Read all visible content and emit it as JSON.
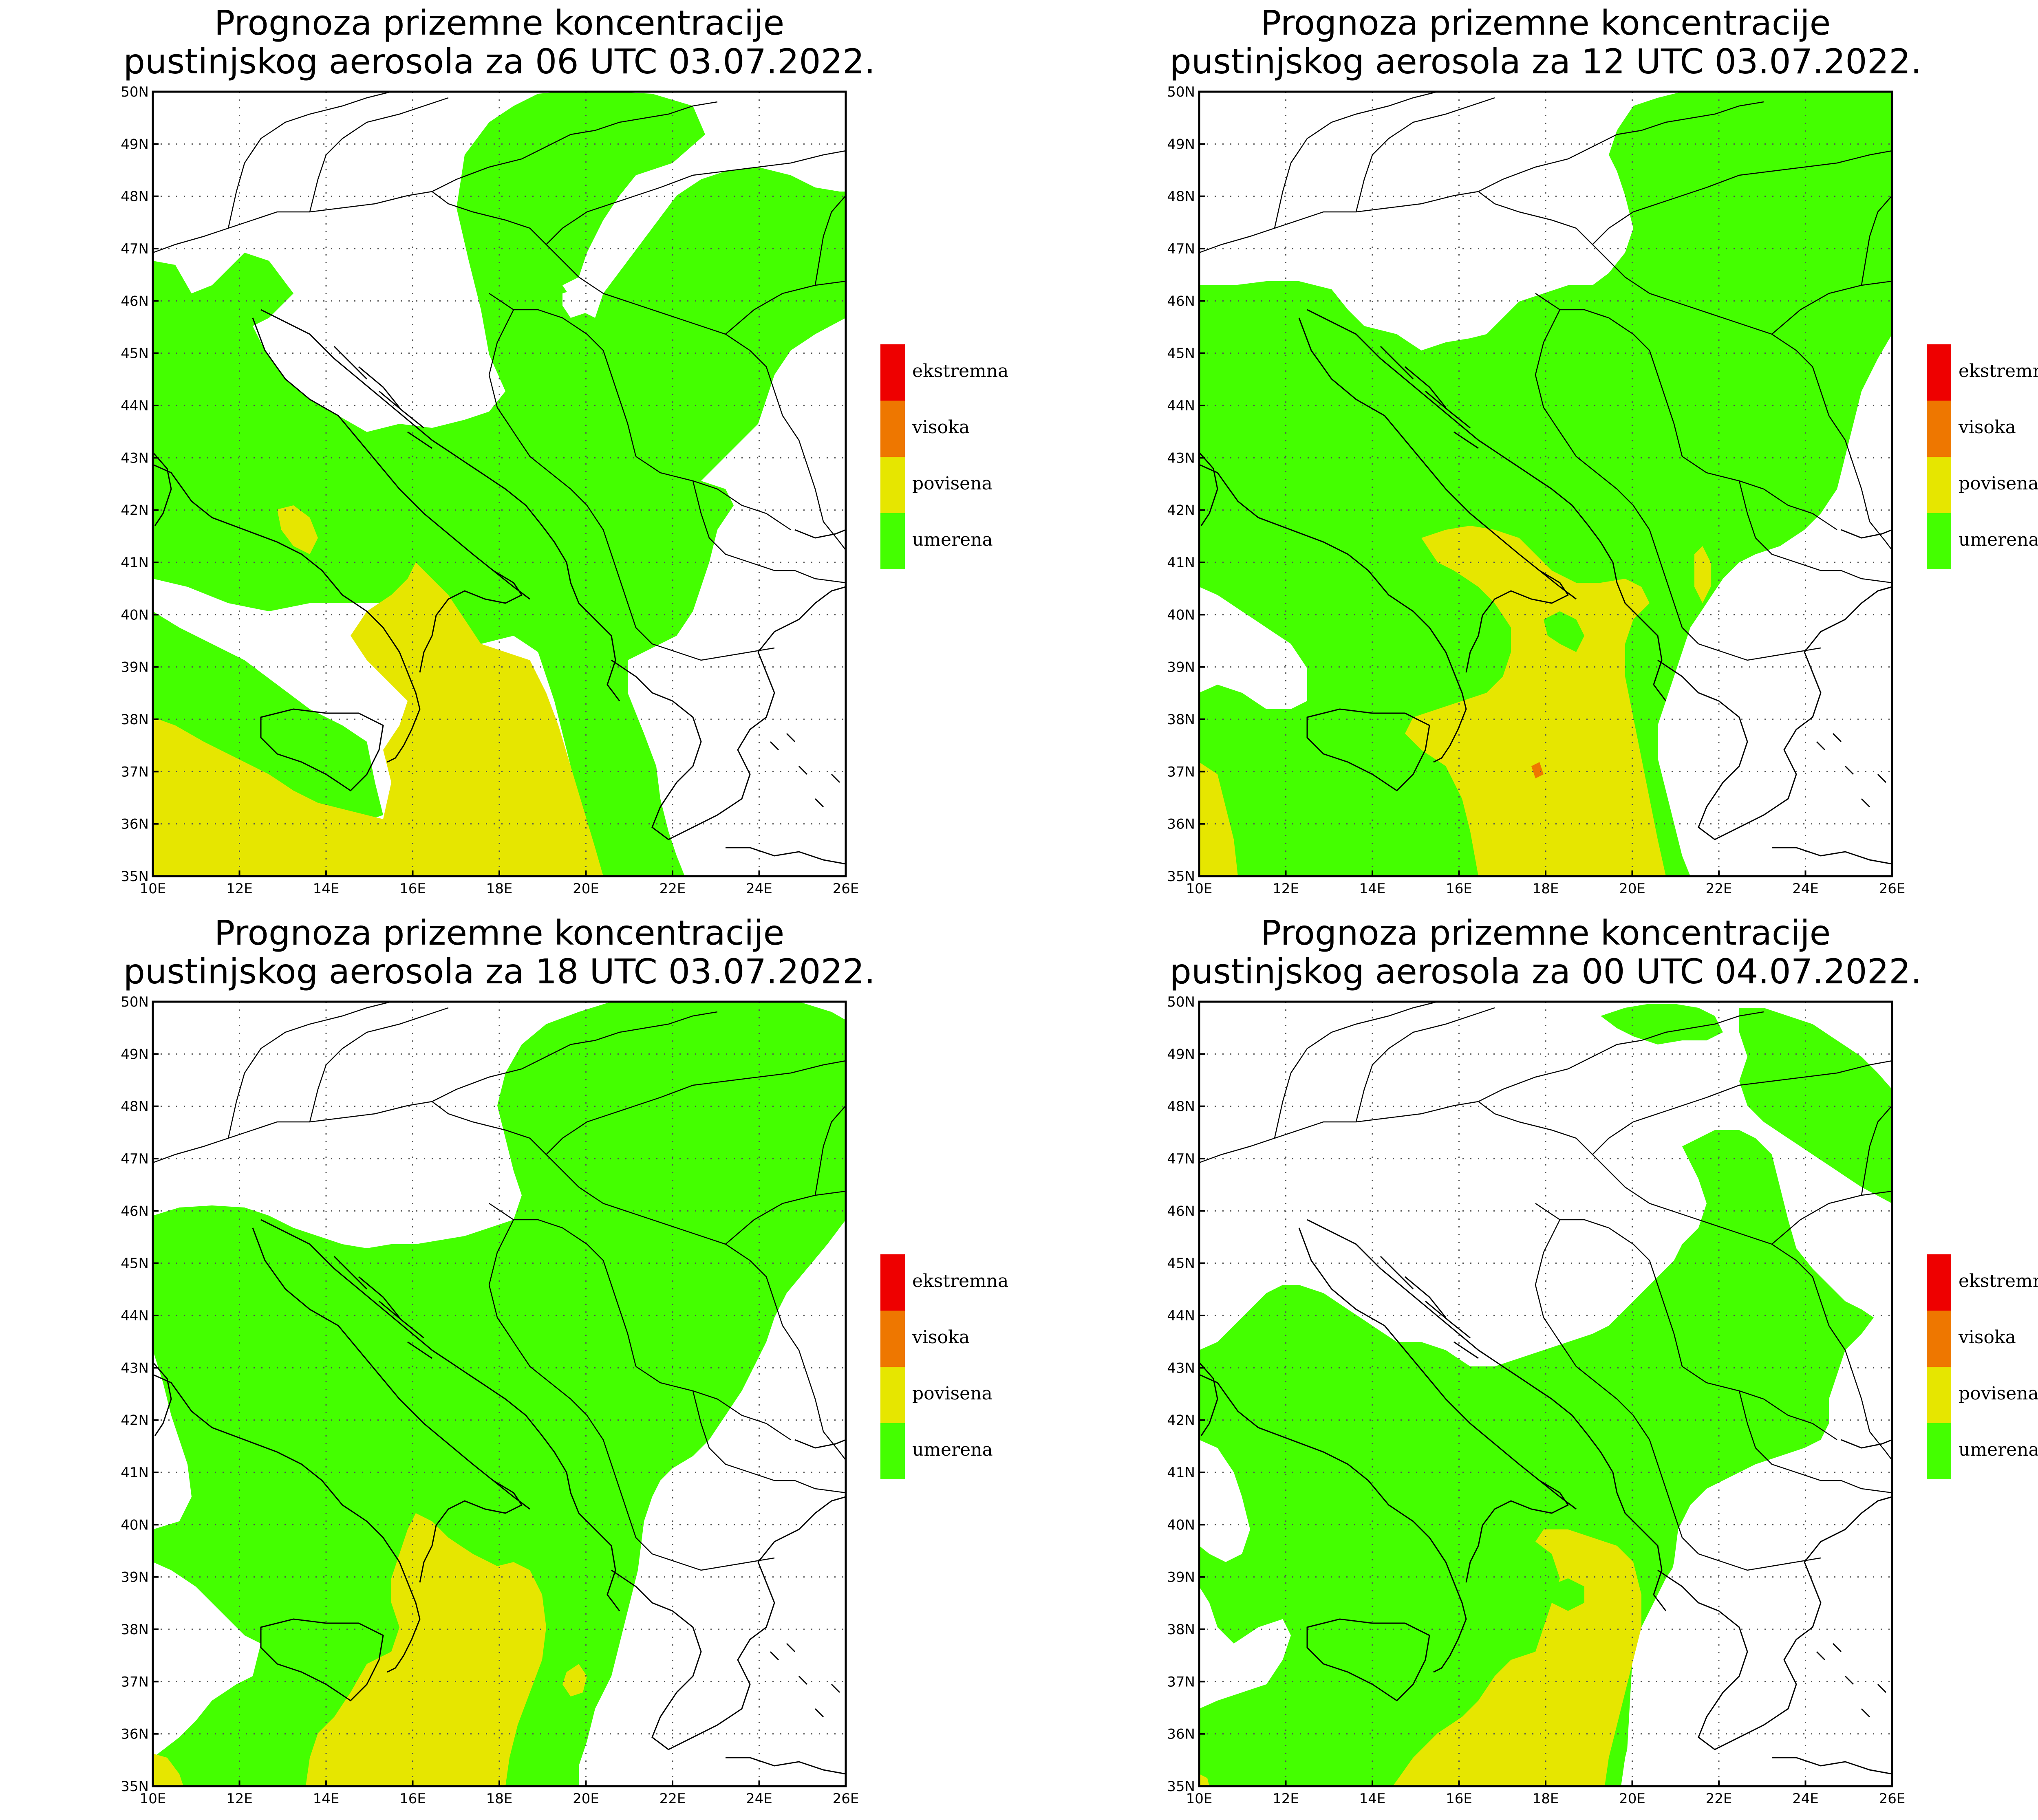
{
  "legend": {
    "items": [
      {
        "label": "ekstremna",
        "color": "#ee0000"
      },
      {
        "label": "visoka",
        "color": "#ee7700"
      },
      {
        "label": "povisena",
        "color": "#e6e600"
      },
      {
        "label": "umerena",
        "color": "#44ff00"
      }
    ]
  },
  "axes": {
    "x_ticks": [
      "10E",
      "12E",
      "14E",
      "16E",
      "18E",
      "20E",
      "22E",
      "24E",
      "26E"
    ],
    "y_ticks": [
      "35N",
      "36N",
      "37N",
      "38N",
      "39N",
      "40N",
      "41N",
      "42N",
      "43N",
      "44N",
      "45N",
      "46N",
      "47N",
      "48N",
      "49N",
      "50N"
    ],
    "lon_range": [
      10,
      26
    ],
    "lat_range": [
      35,
      50
    ]
  },
  "panels": [
    {
      "title_line1": "Prognoza prizemne koncentracije",
      "title_line2": "pustinjskog aerosola za 06 UTC 03.07.2022."
    },
    {
      "title_line1": "Prognoza prizemne koncentracije",
      "title_line2": "pustinjskog aerosola za 12 UTC 03.07.2022."
    },
    {
      "title_line1": "Prognoza prizemne koncentracije",
      "title_line2": "pustinjskog aerosola za 18 UTC 03.07.2022."
    },
    {
      "title_line1": "Prognoza prizemne koncentracije",
      "title_line2": "pustinjskog aerosola za 00 UTC 04.07.2022."
    }
  ]
}
